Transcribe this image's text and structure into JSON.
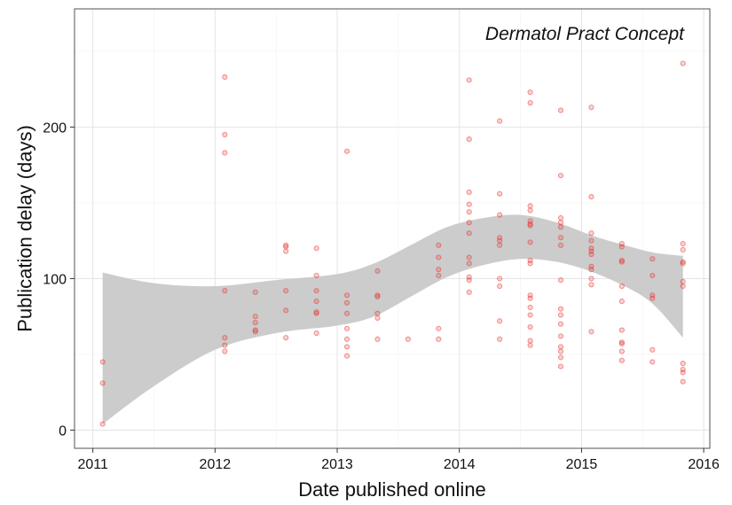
{
  "chart_data": {
    "type": "scatter",
    "title": "",
    "annotation": "Dermatol Pract Concept",
    "xlabel": "Date published online",
    "ylabel": "Publication delay (days)",
    "x_unit": "decimal year",
    "xlim": [
      2010.85,
      2016.05
    ],
    "ylim": [
      -12,
      278
    ],
    "x_ticks": [
      2011,
      2012,
      2013,
      2014,
      2015,
      2016
    ],
    "y_ticks": [
      0,
      100,
      200
    ],
    "grid": true,
    "legend": "none",
    "point_color": "#e8312b",
    "band_color": "#cccccc",
    "points": [
      [
        2011.08,
        45
      ],
      [
        2011.08,
        31
      ],
      [
        2011.08,
        4
      ],
      [
        2012.08,
        233
      ],
      [
        2012.08,
        195
      ],
      [
        2012.08,
        183
      ],
      [
        2012.08,
        92
      ],
      [
        2012.08,
        61
      ],
      [
        2012.08,
        56
      ],
      [
        2012.08,
        52
      ],
      [
        2012.33,
        91
      ],
      [
        2012.33,
        75
      ],
      [
        2012.33,
        71
      ],
      [
        2012.33,
        66
      ],
      [
        2012.33,
        65
      ],
      [
        2012.58,
        122
      ],
      [
        2012.58,
        121
      ],
      [
        2012.58,
        118
      ],
      [
        2012.58,
        92
      ],
      [
        2012.58,
        79
      ],
      [
        2012.58,
        61
      ],
      [
        2012.83,
        120
      ],
      [
        2012.83,
        102
      ],
      [
        2012.83,
        92
      ],
      [
        2012.83,
        85
      ],
      [
        2012.83,
        78
      ],
      [
        2012.83,
        77
      ],
      [
        2012.83,
        64
      ],
      [
        2013.08,
        184
      ],
      [
        2013.08,
        89
      ],
      [
        2013.08,
        84
      ],
      [
        2013.08,
        77
      ],
      [
        2013.08,
        67
      ],
      [
        2013.08,
        60
      ],
      [
        2013.08,
        55
      ],
      [
        2013.08,
        49
      ],
      [
        2013.33,
        105
      ],
      [
        2013.33,
        89
      ],
      [
        2013.33,
        88
      ],
      [
        2013.33,
        77
      ],
      [
        2013.33,
        74
      ],
      [
        2013.33,
        60
      ],
      [
        2013.58,
        60
      ],
      [
        2013.83,
        122
      ],
      [
        2013.83,
        114
      ],
      [
        2013.83,
        106
      ],
      [
        2013.83,
        102
      ],
      [
        2013.83,
        67
      ],
      [
        2013.83,
        60
      ],
      [
        2014.08,
        231
      ],
      [
        2014.08,
        192
      ],
      [
        2014.08,
        157
      ],
      [
        2014.08,
        149
      ],
      [
        2014.08,
        144
      ],
      [
        2014.08,
        137
      ],
      [
        2014.08,
        130
      ],
      [
        2014.08,
        114
      ],
      [
        2014.08,
        110
      ],
      [
        2014.08,
        101
      ],
      [
        2014.08,
        99
      ],
      [
        2014.08,
        91
      ],
      [
        2014.33,
        204
      ],
      [
        2014.33,
        156
      ],
      [
        2014.33,
        142
      ],
      [
        2014.33,
        127
      ],
      [
        2014.33,
        125
      ],
      [
        2014.33,
        122
      ],
      [
        2014.33,
        100
      ],
      [
        2014.33,
        95
      ],
      [
        2014.33,
        72
      ],
      [
        2014.33,
        60
      ],
      [
        2014.58,
        223
      ],
      [
        2014.58,
        216
      ],
      [
        2014.58,
        148
      ],
      [
        2014.58,
        145
      ],
      [
        2014.58,
        138
      ],
      [
        2014.58,
        136
      ],
      [
        2014.58,
        135
      ],
      [
        2014.58,
        124
      ],
      [
        2014.58,
        112
      ],
      [
        2014.58,
        110
      ],
      [
        2014.58,
        89
      ],
      [
        2014.58,
        87
      ],
      [
        2014.58,
        81
      ],
      [
        2014.58,
        76
      ],
      [
        2014.58,
        68
      ],
      [
        2014.58,
        59
      ],
      [
        2014.58,
        56
      ],
      [
        2014.83,
        211
      ],
      [
        2014.83,
        168
      ],
      [
        2014.83,
        140
      ],
      [
        2014.83,
        137
      ],
      [
        2014.83,
        134
      ],
      [
        2014.83,
        127
      ],
      [
        2014.83,
        122
      ],
      [
        2014.83,
        99
      ],
      [
        2014.83,
        80
      ],
      [
        2014.83,
        76
      ],
      [
        2014.83,
        70
      ],
      [
        2014.83,
        62
      ],
      [
        2014.83,
        55
      ],
      [
        2014.83,
        52
      ],
      [
        2014.83,
        48
      ],
      [
        2014.83,
        42
      ],
      [
        2015.08,
        213
      ],
      [
        2015.08,
        154
      ],
      [
        2015.08,
        130
      ],
      [
        2015.08,
        125
      ],
      [
        2015.08,
        120
      ],
      [
        2015.08,
        118
      ],
      [
        2015.08,
        116
      ],
      [
        2015.08,
        108
      ],
      [
        2015.08,
        106
      ],
      [
        2015.08,
        100
      ],
      [
        2015.08,
        96
      ],
      [
        2015.08,
        65
      ],
      [
        2015.33,
        123
      ],
      [
        2015.33,
        121
      ],
      [
        2015.33,
        112
      ],
      [
        2015.33,
        111
      ],
      [
        2015.33,
        95
      ],
      [
        2015.33,
        85
      ],
      [
        2015.33,
        66
      ],
      [
        2015.33,
        58
      ],
      [
        2015.33,
        57
      ],
      [
        2015.33,
        52
      ],
      [
        2015.33,
        46
      ],
      [
        2015.58,
        113
      ],
      [
        2015.58,
        102
      ],
      [
        2015.58,
        89
      ],
      [
        2015.58,
        87
      ],
      [
        2015.58,
        53
      ],
      [
        2015.58,
        45
      ],
      [
        2015.83,
        242
      ],
      [
        2015.83,
        123
      ],
      [
        2015.83,
        119
      ],
      [
        2015.83,
        111
      ],
      [
        2015.83,
        110
      ],
      [
        2015.83,
        98
      ],
      [
        2015.83,
        95
      ],
      [
        2015.83,
        44
      ],
      [
        2015.83,
        40
      ],
      [
        2015.83,
        38
      ],
      [
        2015.83,
        32
      ]
    ],
    "smooth_band": {
      "x": [
        2011.08,
        2011.5,
        2012.0,
        2012.5,
        2013.0,
        2013.3,
        2013.6,
        2013.9,
        2014.2,
        2014.5,
        2014.8,
        2015.1,
        2015.4,
        2015.6,
        2015.83
      ],
      "upper": [
        104,
        97,
        95,
        99,
        103,
        110,
        122,
        134,
        140,
        142,
        137,
        128,
        121,
        117,
        115
      ],
      "lower": [
        4,
        29,
        53,
        64,
        69,
        75,
        88,
        101,
        109,
        113,
        111,
        104,
        93,
        82,
        61
      ]
    }
  }
}
